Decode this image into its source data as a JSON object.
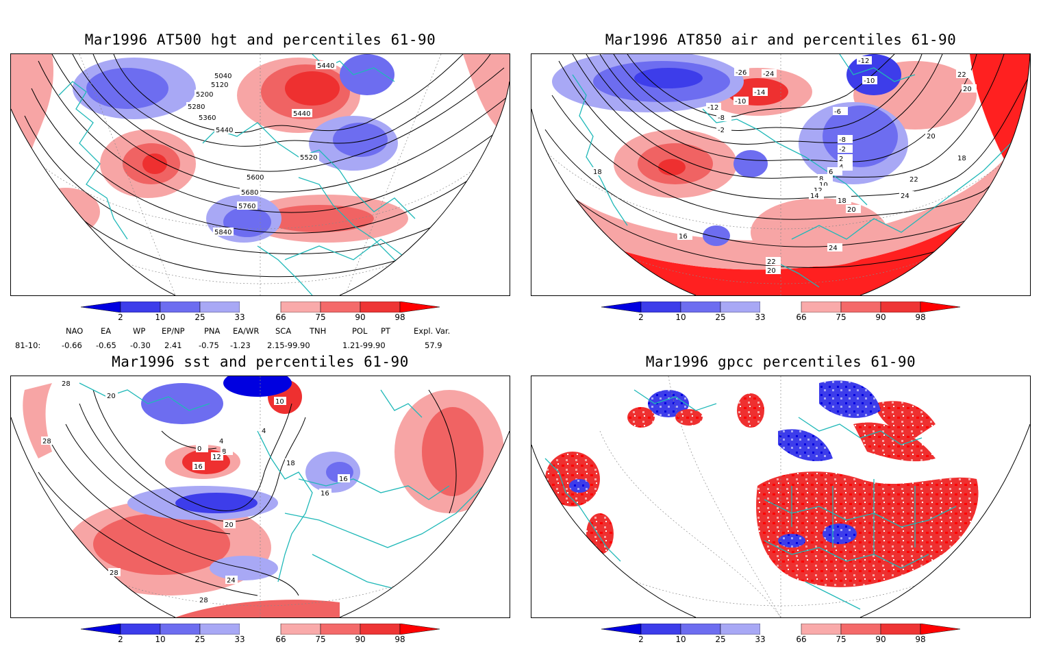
{
  "panels": [
    {
      "title": "Mar1996 AT500 hgt and percentiles 61-90",
      "contour_labels": [
        "5040",
        "5120",
        "5200",
        "5280",
        "5360",
        "5440",
        "5440",
        "5440",
        "5520",
        "5600",
        "5680",
        "5760",
        "5840"
      ]
    },
    {
      "title": "Mar1996 AT850 air and percentiles 61-90",
      "contour_labels": [
        "-12",
        "-10",
        "-26",
        "-24",
        "-14",
        "-10",
        "-12",
        "-8",
        "-6",
        "-2",
        "-8",
        "-2",
        "2",
        "4",
        "6",
        "8",
        "10",
        "12",
        "14",
        "18",
        "20",
        "16",
        "18",
        "20",
        "22",
        "24",
        "24",
        "22",
        "20",
        "22",
        "20",
        "18"
      ]
    },
    {
      "title": "Mar1996 sst and percentiles 61-90",
      "contour_labels": [
        "28",
        "20",
        "28",
        "10",
        "4",
        "0",
        "4",
        "8",
        "12",
        "16",
        "16",
        "16",
        "18",
        "20",
        "24",
        "28",
        "28"
      ]
    },
    {
      "title": "Mar1996 gpcc percentiles 61-90",
      "contour_labels": []
    }
  ],
  "colorbar": {
    "labels": [
      "2",
      "10",
      "25",
      "33",
      "66",
      "75",
      "90",
      "98"
    ],
    "colors": [
      "#0000e0",
      "#3d3dea",
      "#6d6df0",
      "#a8a8f5",
      "#ffffff",
      "#f9aaaa",
      "#f46a6a",
      "#ee3535",
      "#ff0000"
    ]
  },
  "indices": {
    "headers": [
      "NAO",
      "EA",
      "WP",
      "EP/NP",
      "PNA",
      "EA/WR",
      "SCA",
      "TNH",
      "POL",
      "PT",
      "Expl. Var."
    ],
    "row_label": "81-10:",
    "values": [
      "-0.66",
      "-0.65",
      "-0.30",
      "2.41",
      "-0.75",
      "-1.23",
      "2.15-99.90",
      "1.21-99.90",
      "57.9"
    ]
  }
}
